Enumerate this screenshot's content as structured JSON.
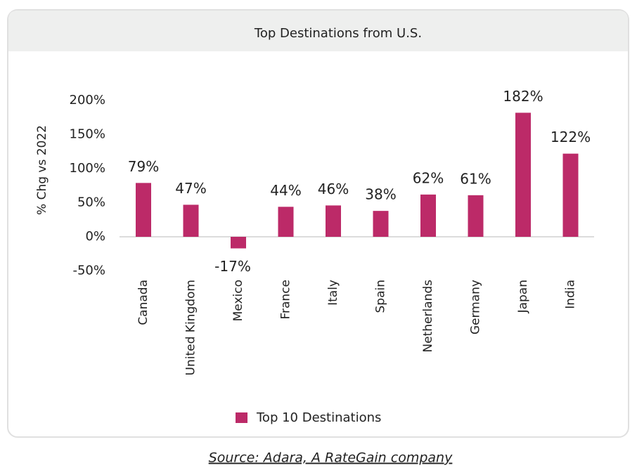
{
  "chart_data": {
    "type": "bar",
    "title": "Top Destinations from U.S.",
    "y_label": "% Chg vs 2022",
    "categories": [
      "Canada",
      "United Kingdom",
      "Mexico",
      "France",
      "Italy",
      "Spain",
      "Netherlands",
      "Germany",
      "Japan",
      "India"
    ],
    "series": [
      {
        "name": "Top 10 Destinations",
        "color": "#bc2a68",
        "values": [
          79,
          47,
          -17,
          44,
          46,
          38,
          62,
          61,
          182,
          122
        ],
        "value_labels": [
          "79%",
          "47%",
          "-17%",
          "44%",
          "46%",
          "38%",
          "62%",
          "61%",
          "182%",
          "122%"
        ]
      }
    ],
    "ylim": [
      -50,
      200
    ],
    "yticks": [
      {
        "value": -50,
        "label": "-50%"
      },
      {
        "value": 0,
        "label": "0%"
      },
      {
        "value": 50,
        "label": "50%"
      },
      {
        "value": 100,
        "label": "100%"
      },
      {
        "value": 150,
        "label": "150%"
      },
      {
        "value": 200,
        "label": "200%"
      }
    ],
    "grid": false,
    "legend": "bottom",
    "source": "Source: Adara, A RateGain company"
  }
}
